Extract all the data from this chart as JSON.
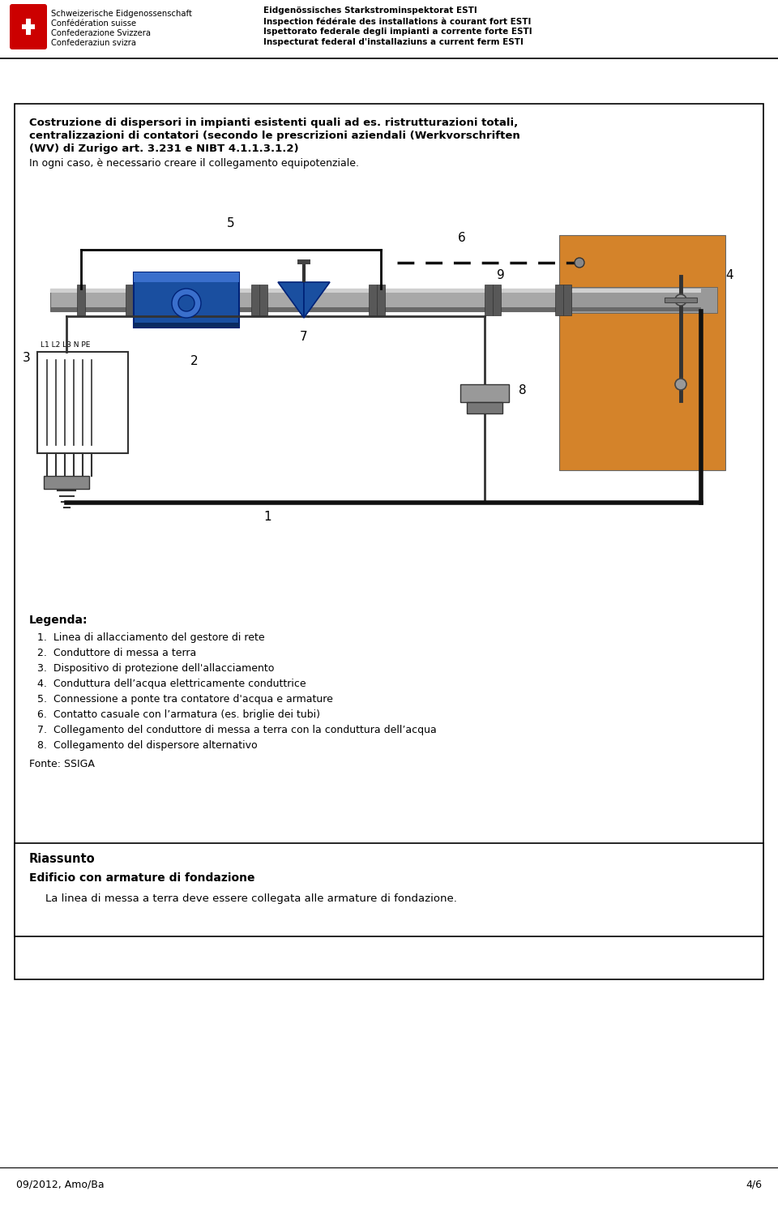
{
  "bg_color": "#ffffff",
  "header_logo_text_left": [
    "Schweizerische Eidgenossenschaft",
    "Confédération suisse",
    "Confederazione Svizzera",
    "Confederaziun svizra"
  ],
  "header_text_right": [
    "Eidgenössisches Starkstrominspektorat ESTI",
    "Inspection fédérale des installations à courant fort ESTI",
    "Ispettorato federale degli impianti a corrente forte ESTI",
    "Inspecturat federal d'installaziuns a current ferm ESTI"
  ],
  "title_line1": "Costruzione di dispersori in impianti esistenti quali ad es. ristrutturazioni totali,",
  "title_line2": "centralizzazioni di contatori (secondo le prescrizioni aziendali (Werkvorschriften",
  "title_line3": "(WV) di Zurigo art. 3.231 e NIBT 4.1.1.3.1.2)",
  "main_subtitle": "In ogni caso, è necessario creare il collegamento equipotenziale.",
  "legend_title": "Legenda:",
  "legend_items": [
    "1.  Linea di allacciamento del gestore di rete",
    "2.  Conduttore di messa a terra",
    "3.  Dispositivo di protezione dell'allacciamento",
    "4.  Conduttura dell’acqua elettricamente conduttrice",
    "5.  Connessione a ponte tra contatore d'acqua e armature",
    "6.  Contatto casuale con l’armatura (es. briglie dei tubi)",
    "7.  Collegamento del conduttore di messa a terra con la conduttura dell’acqua",
    "8.  Collegamento del dispersore alternativo"
  ],
  "fonte": "Fonte: SSIGA",
  "riassunto_title": "Riassunto",
  "riassunto_subtitle": "Edificio con armature di fondazione",
  "riassunto_text": "La linea di messa a terra deve essere collegata alle armature di fondazione.",
  "footer_left": "09/2012, Amo/Ba",
  "footer_right": "4/6",
  "orange_color": "#D4832A",
  "pipe_gray": "#A8A8A8",
  "pipe_dark": "#686868",
  "pipe_light": "#D0D0D0",
  "blue_color": "#1A4FA0",
  "blue_light": "#3A6FCC",
  "joint_color": "#585858",
  "wire_color": "#1A1A1A",
  "panel_border": "#444444"
}
